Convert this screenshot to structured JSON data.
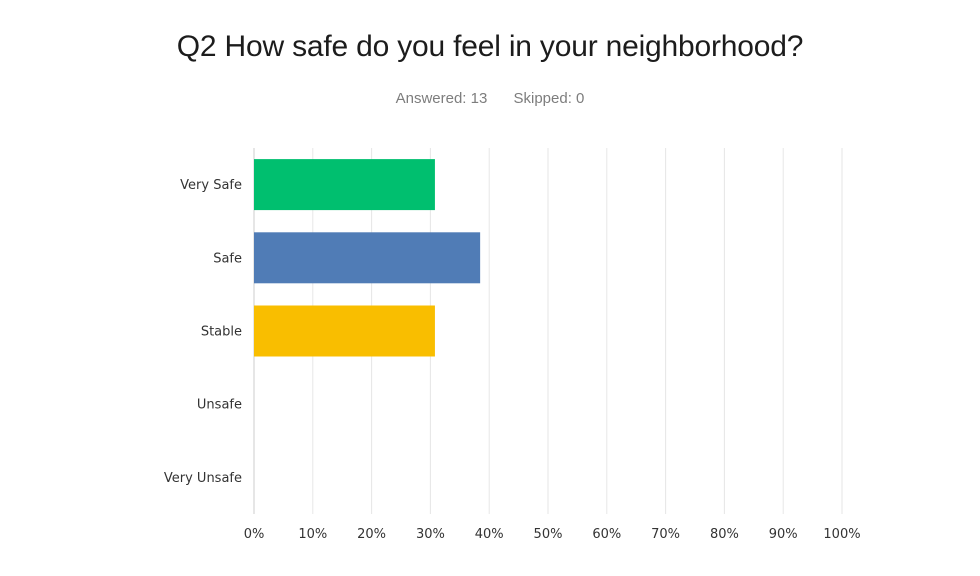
{
  "question": {
    "title": "Q2 How safe do you feel in your neighborhood?",
    "answered_label": "Answered: 13",
    "skipped_label": "Skipped: 0"
  },
  "colors": {
    "grid": "#e6e6e6",
    "axis": "#cccccc"
  },
  "chart_data": {
    "type": "bar",
    "orientation": "horizontal",
    "categories": [
      "Very Safe",
      "Safe",
      "Stable",
      "Unsafe",
      "Very Unsafe"
    ],
    "values": [
      30.77,
      38.46,
      30.77,
      0,
      0
    ],
    "colors": [
      "#00bf6f",
      "#507cb6",
      "#f9be00",
      "#6bc8cd",
      "#ff8b4f"
    ],
    "xlim": [
      0,
      100
    ],
    "xticks": [
      0,
      10,
      20,
      30,
      40,
      50,
      60,
      70,
      80,
      90,
      100
    ],
    "tick_suffix": "%",
    "grid": true,
    "title": "",
    "xlabel": "",
    "ylabel": ""
  }
}
